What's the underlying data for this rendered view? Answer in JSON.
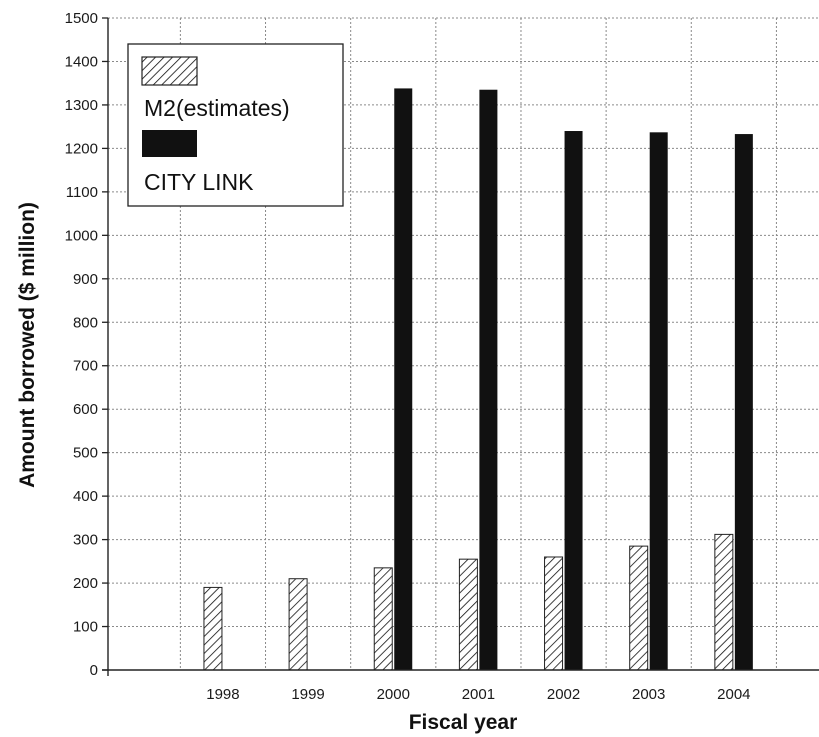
{
  "chart_data": {
    "type": "bar",
    "title": "",
    "xlabel": "Fiscal year",
    "ylabel": "Amount borrowed ($ million)",
    "ylim": [
      0,
      1500
    ],
    "yticks": [
      0,
      100,
      200,
      300,
      400,
      500,
      600,
      700,
      800,
      900,
      1000,
      1100,
      1200,
      1300,
      1400,
      1500
    ],
    "categories": [
      "1998",
      "1999",
      "2000",
      "2001",
      "2002",
      "2003",
      "2004"
    ],
    "grid": true,
    "legend_position": "top-left",
    "series": [
      {
        "name": "M2(estimates)",
        "pattern": "hatched",
        "color": "#ffffff",
        "values": [
          190,
          210,
          235,
          255,
          260,
          285,
          312
        ]
      },
      {
        "name": "CITY LINK",
        "pattern": "solid",
        "color": "#111111",
        "values": [
          null,
          null,
          1338,
          1335,
          1240,
          1237,
          1233
        ]
      }
    ]
  }
}
